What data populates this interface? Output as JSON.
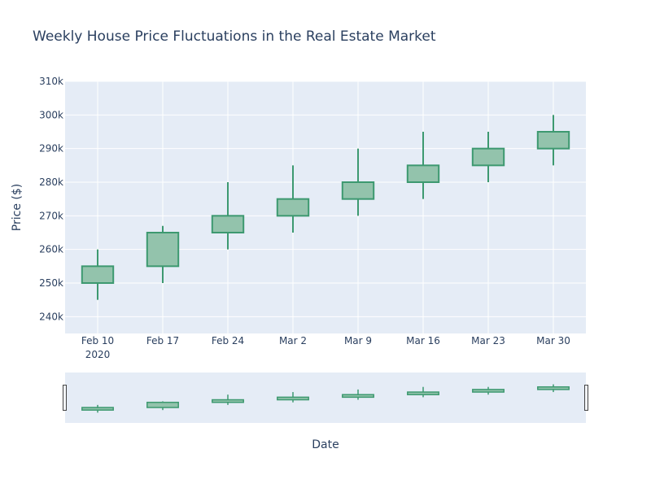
{
  "chart_data": {
    "type": "candlestick",
    "title": "Weekly House Price Fluctuations in the Real Estate Market",
    "xlabel": "Date",
    "ylabel": "Price ($)",
    "x_tick_labels": [
      "Feb 10",
      "Feb 17",
      "Feb 24",
      "Mar 2",
      "Mar 9",
      "Mar 16",
      "Mar 23",
      "Mar 30"
    ],
    "x_tick_year": "2020",
    "y_tick_labels": [
      "240k",
      "250k",
      "260k",
      "270k",
      "280k",
      "290k",
      "300k",
      "310k"
    ],
    "y_tick_values": [
      240000,
      250000,
      260000,
      270000,
      280000,
      290000,
      300000,
      310000
    ],
    "ylim": [
      235000,
      310000
    ],
    "grid": true,
    "range_slider": true,
    "colors": {
      "increasing": "#3D9970",
      "increasing_fill": "#93c3ac",
      "plot_background": "#e5ecf6",
      "grid": "#ffffff",
      "text": "#2a3f5f"
    },
    "series": [
      {
        "dates": [
          "2020-02-10",
          "2020-02-17",
          "2020-02-24",
          "2020-03-02",
          "2020-03-09",
          "2020-03-16",
          "2020-03-23",
          "2020-03-30"
        ],
        "open": [
          250000,
          255000,
          265000,
          270000,
          275000,
          280000,
          285000,
          290000
        ],
        "high": [
          260000,
          267000,
          280000,
          285000,
          290000,
          295000,
          295000,
          300000
        ],
        "low": [
          245000,
          250000,
          260000,
          265000,
          270000,
          275000,
          280000,
          285000
        ],
        "close": [
          255000,
          265000,
          270000,
          275000,
          280000,
          285000,
          290000,
          295000
        ]
      }
    ]
  }
}
